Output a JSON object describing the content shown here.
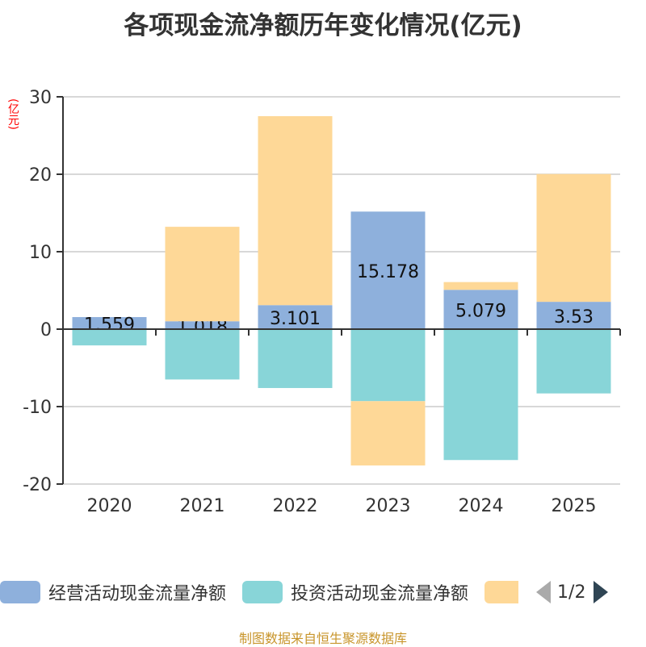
{
  "title": "各项现金流净额历年变化情况(亿元)",
  "source": "制图数据来自恒生聚源数据库",
  "chart_data": {
    "type": "bar",
    "stacked": true,
    "title": "各项现金流净额历年变化情况(亿元)",
    "ylabel": "(亿元)",
    "ylim": [
      -20,
      30
    ],
    "yticks": [
      30,
      20,
      10,
      0,
      -10,
      -20
    ],
    "grid": true,
    "legend_position": "bottom",
    "categories": [
      "2020",
      "2021",
      "2022",
      "2023",
      "2024",
      "2025"
    ],
    "series": [
      {
        "name": "经营活动现金流量净额",
        "color": "#8eb0dc",
        "values": [
          1.559,
          1.018,
          3.101,
          15.178,
          5.079,
          3.53
        ],
        "labels": [
          "1.559",
          "1.018",
          "3.101",
          "15.178",
          "5.079",
          "3.53"
        ]
      },
      {
        "name": "投资活动现金流量净额",
        "color": "#88d5d8",
        "values": [
          -2.1,
          -6.5,
          -7.6,
          -9.3,
          -16.9,
          -8.3
        ]
      },
      {
        "color": "#fed897",
        "values": [
          0,
          12.2,
          24.4,
          -8.3,
          1.0,
          16.5
        ]
      }
    ]
  },
  "legend": {
    "page": "1/2",
    "prev_icon": "triangle-left-icon",
    "next_icon": "triangle-right-icon",
    "prev_color": "#aaaaaa",
    "next_color": "#2f4554"
  }
}
